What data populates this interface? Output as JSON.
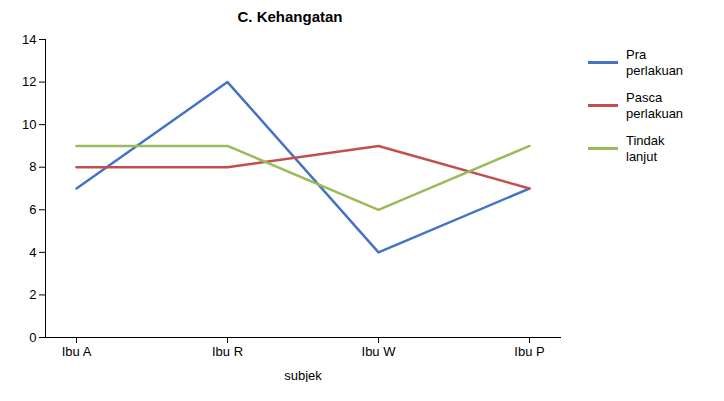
{
  "chart_data": {
    "type": "line",
    "title": "C. Kehangatan",
    "xlabel": "subjek",
    "categories": [
      "Ibu A",
      "Ibu R",
      "Ibu W",
      "Ibu P"
    ],
    "series": [
      {
        "name": "Pra\nperlakuan",
        "color": "#4472C4",
        "values": [
          7,
          12,
          4,
          7
        ]
      },
      {
        "name": "Pasca\nperlakuan",
        "color": "#C0504D",
        "values": [
          8,
          8,
          9,
          7
        ]
      },
      {
        "name": "Tindak\nlanjut",
        "color": "#9BBB59",
        "values": [
          9,
          9,
          6,
          9
        ]
      }
    ],
    "ylim": [
      0,
      14
    ],
    "yticks": [
      0,
      2,
      4,
      6,
      8,
      10,
      12,
      14
    ],
    "grid": false,
    "legend": "right"
  }
}
